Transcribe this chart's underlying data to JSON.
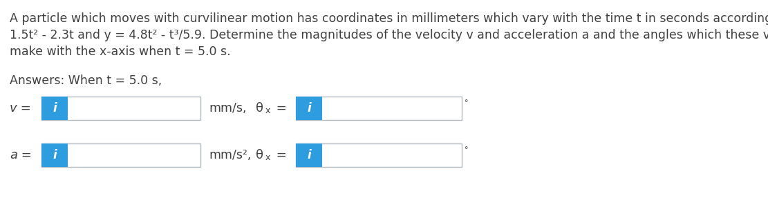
{
  "problem_line1": "A particle which moves with curvilinear motion has coordinates in millimeters which vary with the time t in seconds according to x =",
  "problem_line2": "1.5t² - 2.3t and y = 4.8t² - t³/5.9. Determine the magnitudes of the velocity v and acceleration a and the angles which these vectors",
  "problem_line3": "make with the x-axis when t = 5.0 s.",
  "answer_label": "Answers: When t = 5.0 s,",
  "row1_label_pre": "v",
  "row1_label_post": " =",
  "row1_unit": "mm/s,",
  "row1_angle_label": "θ",
  "row1_angle_sub": "x",
  "row1_angle_eq": " =",
  "row1_degree": "°",
  "row2_label_pre": "a",
  "row2_label_post": " =",
  "row2_unit": "mm/s²,",
  "row2_angle_label": "θ",
  "row2_angle_sub": "x",
  "row2_angle_eq": " =",
  "row2_degree": "°",
  "box_fill_color": "#ffffff",
  "box_edge_color": "#b0b8c0",
  "icon_bg_color": "#2d9de0",
  "icon_text_color": "#ffffff",
  "icon_text": "i",
  "bg_color": "#ffffff",
  "text_color": "#404040",
  "font_size_problem": 12.5,
  "font_size_answer": 12.5,
  "font_size_label": 13,
  "font_size_unit": 12.5,
  "font_size_icon": 12,
  "font_size_degree": 8
}
